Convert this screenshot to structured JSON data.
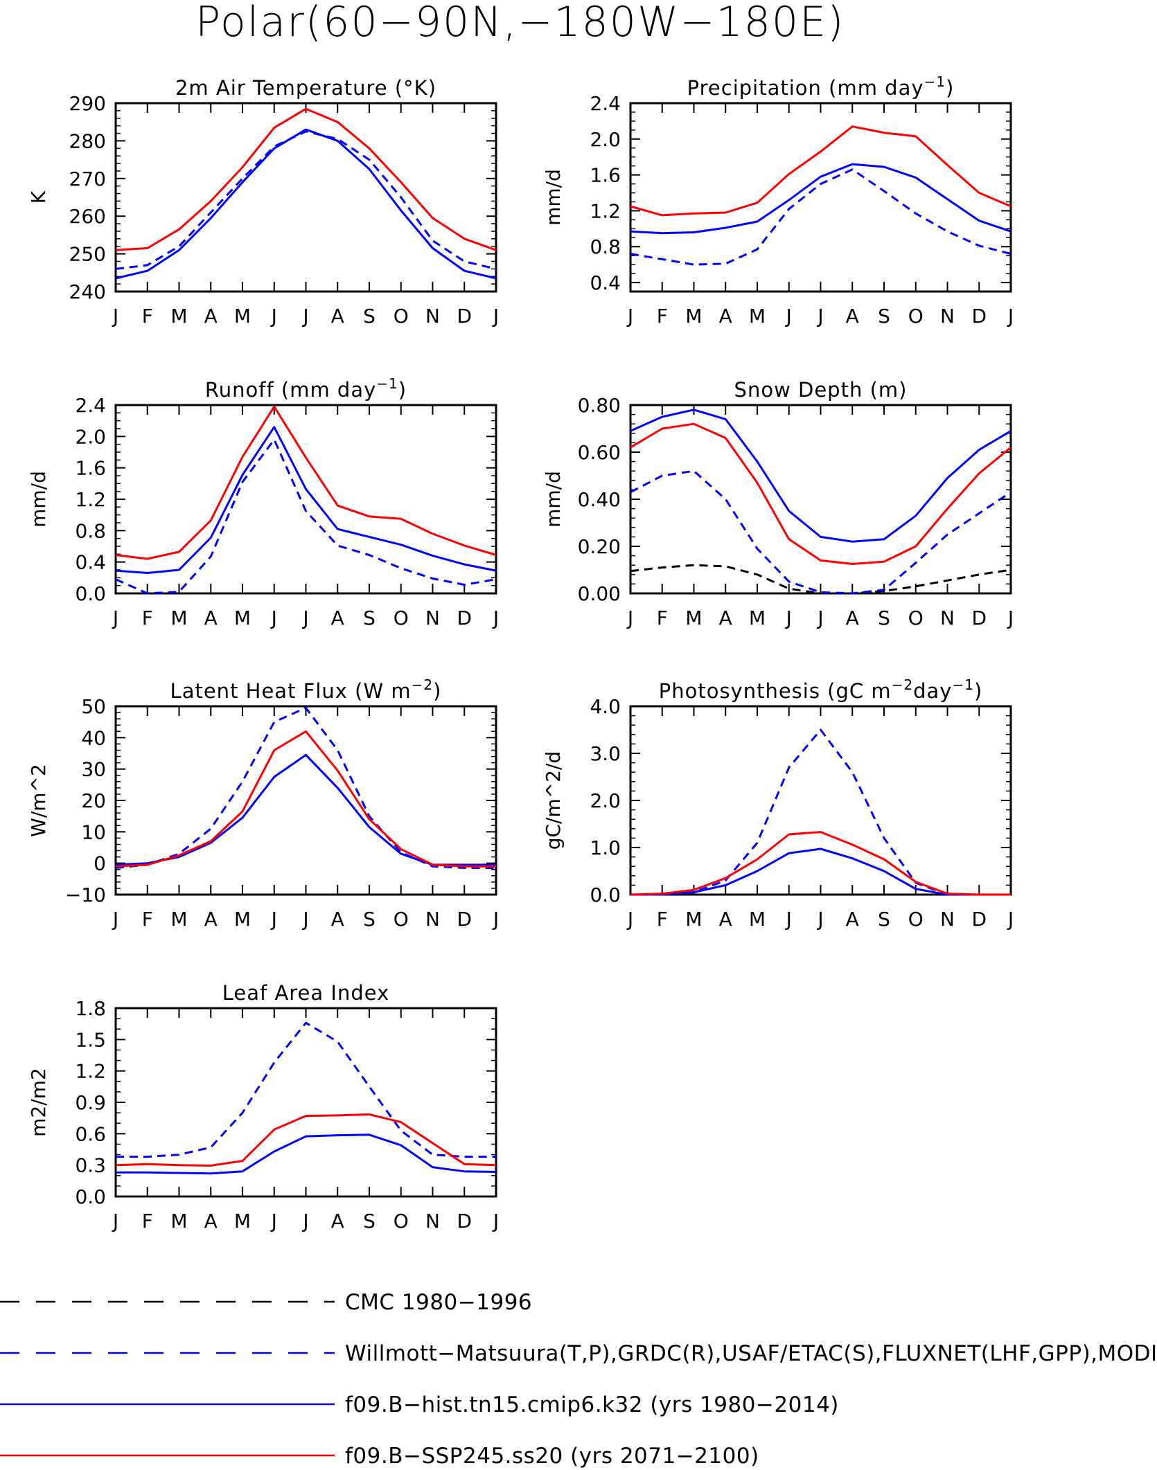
{
  "page": {
    "title": "Polar(60−90N,−180W−180E)"
  },
  "months": [
    "J",
    "F",
    "M",
    "A",
    "M",
    "J",
    "J",
    "A",
    "S",
    "O",
    "N",
    "D",
    "J"
  ],
  "legend": [
    {
      "label": "CMC 1980−1996",
      "color": "#000000",
      "dashed": true
    },
    {
      "label": "Willmott−Matsuura(T,P),GRDC(R),USAF/ETAC(S),FLUXNET(LHF,GPP),MODIS(LAI)",
      "color": "#0000ff",
      "dashed": true
    },
    {
      "label": "f09.B−hist.tn15.cmip6.k32 (yrs 1980−2014)",
      "color": "#0000ff",
      "dashed": false
    },
    {
      "label": "f09.B−SSP245.ss20 (yrs 2071−2100)",
      "color": "#ff0000",
      "dashed": false
    }
  ],
  "chart_data": [
    {
      "type": "line",
      "title": "2m Air Temperature (°K)",
      "ylabel": "K",
      "ylim": [
        240,
        290
      ],
      "yticks": [
        "240",
        "250",
        "260",
        "270",
        "280",
        "290"
      ],
      "minor_step": 2,
      "series": [
        {
          "style": "obs",
          "values": [
            246,
            247,
            252,
            261,
            270,
            278.5,
            282.5,
            280.5,
            275,
            265,
            253.5,
            248,
            246
          ]
        },
        {
          "style": "hist",
          "values": [
            243.5,
            245.5,
            251,
            259.5,
            269,
            278,
            283,
            280,
            272.5,
            261.5,
            251.5,
            245.5,
            243.5
          ]
        },
        {
          "style": "future",
          "values": [
            251,
            251.5,
            256.5,
            264,
            273,
            283.5,
            288.5,
            285,
            278,
            269,
            259.5,
            254,
            251
          ]
        }
      ]
    },
    {
      "type": "line",
      "title": "Precipitation (mm day⁻¹)",
      "ylabel": "mm/d",
      "ylim": [
        0.3,
        2.4
      ],
      "yticks": [
        "0.4",
        "0.8",
        "1.2",
        "1.6",
        "2.0",
        "2.4"
      ],
      "ytick_values": [
        0.4,
        0.8,
        1.2,
        1.6,
        2.0,
        2.4
      ],
      "minor_step": 0.1,
      "series": [
        {
          "style": "obs",
          "values": [
            0.72,
            0.66,
            0.6,
            0.61,
            0.77,
            1.22,
            1.5,
            1.66,
            1.42,
            1.17,
            0.97,
            0.81,
            0.72
          ]
        },
        {
          "style": "hist",
          "values": [
            0.97,
            0.95,
            0.96,
            1.01,
            1.08,
            1.32,
            1.58,
            1.72,
            1.69,
            1.57,
            1.33,
            1.09,
            0.97
          ]
        },
        {
          "style": "future",
          "values": [
            1.25,
            1.15,
            1.17,
            1.18,
            1.29,
            1.61,
            1.86,
            2.14,
            2.07,
            2.03,
            1.71,
            1.4,
            1.25
          ]
        }
      ]
    },
    {
      "type": "line",
      "title": "Runoff (mm day⁻¹)",
      "ylabel": "mm/d",
      "ylim": [
        0,
        2.4
      ],
      "yticks": [
        "0.0",
        "0.4",
        "0.8",
        "1.2",
        "1.6",
        "2.0",
        "2.4"
      ],
      "minor_step": 0.1,
      "series": [
        {
          "style": "obs",
          "values": [
            0.18,
            0.0,
            0.02,
            0.47,
            1.42,
            1.96,
            1.05,
            0.61,
            0.49,
            0.32,
            0.19,
            0.11,
            0.18
          ]
        },
        {
          "style": "hist",
          "values": [
            0.29,
            0.26,
            0.3,
            0.71,
            1.51,
            2.12,
            1.33,
            0.82,
            0.72,
            0.62,
            0.48,
            0.37,
            0.29
          ]
        },
        {
          "style": "future",
          "values": [
            0.49,
            0.44,
            0.53,
            0.93,
            1.74,
            2.38,
            1.73,
            1.12,
            0.98,
            0.95,
            0.76,
            0.61,
            0.49
          ]
        }
      ]
    },
    {
      "type": "line",
      "title": "Snow Depth (m)",
      "ylabel": "mm/d",
      "ylim": [
        0,
        0.8
      ],
      "yticks": [
        "0.00",
        "0.20",
        "0.40",
        "0.60",
        "0.80"
      ],
      "minor_step": 0.04,
      "series": [
        {
          "style": "cmc",
          "values": [
            0.095,
            0.11,
            0.12,
            0.115,
            0.08,
            0.02,
            0.0,
            0.0,
            0.01,
            0.03,
            0.055,
            0.08,
            0.1
          ]
        },
        {
          "style": "obs",
          "values": [
            0.43,
            0.5,
            0.52,
            0.4,
            0.19,
            0.05,
            0.005,
            0.0,
            0.015,
            0.13,
            0.25,
            0.34,
            0.43
          ]
        },
        {
          "style": "hist",
          "values": [
            0.69,
            0.75,
            0.78,
            0.74,
            0.56,
            0.35,
            0.24,
            0.22,
            0.23,
            0.33,
            0.49,
            0.61,
            0.69
          ]
        },
        {
          "style": "future",
          "values": [
            0.62,
            0.7,
            0.72,
            0.66,
            0.47,
            0.23,
            0.14,
            0.125,
            0.135,
            0.2,
            0.36,
            0.51,
            0.62
          ]
        }
      ]
    },
    {
      "type": "line",
      "title": "Latent Heat Flux (W m⁻²)",
      "ylabel": "W/m^2",
      "ylim": [
        -10,
        50
      ],
      "yticks": [
        "−10",
        "0",
        "10",
        "20",
        "30",
        "40",
        "50"
      ],
      "ytick_values": [
        -10,
        0,
        10,
        20,
        30,
        40,
        50
      ],
      "minor_step": 2,
      "series": [
        {
          "style": "obs",
          "values": [
            -1.5,
            -0.5,
            3,
            11,
            26,
            45,
            49.5,
            36,
            15,
            3.5,
            -1,
            -1.5,
            -1.5
          ]
        },
        {
          "style": "hist",
          "values": [
            -0.5,
            0,
            2,
            6.5,
            14.5,
            27.5,
            34.5,
            24,
            11.5,
            3,
            -0.5,
            -0.5,
            -0.5
          ]
        },
        {
          "style": "future",
          "values": [
            -1,
            -0.5,
            2.5,
            7,
            16.5,
            36,
            42,
            29.5,
            14,
            4.5,
            -0.5,
            -1,
            -1
          ]
        }
      ]
    },
    {
      "type": "line",
      "title": "Photosynthesis (gC m⁻²day⁻¹)",
      "ylabel": "gC/m^2/d",
      "ylim": [
        0,
        4
      ],
      "yticks": [
        "0.0",
        "1.0",
        "2.0",
        "3.0",
        "4.0"
      ],
      "minor_step": 0.2,
      "series": [
        {
          "style": "obs",
          "values": [
            0.0,
            0.0,
            0.05,
            0.3,
            1.1,
            2.7,
            3.5,
            2.6,
            1.2,
            0.25,
            0.0,
            0.0,
            0.0
          ]
        },
        {
          "style": "hist",
          "values": [
            0.0,
            0.0,
            0.05,
            0.2,
            0.5,
            0.88,
            0.97,
            0.77,
            0.5,
            0.12,
            0.0,
            0.0,
            0.0
          ]
        },
        {
          "style": "future",
          "values": [
            0.0,
            0.02,
            0.1,
            0.35,
            0.75,
            1.28,
            1.33,
            1.06,
            0.75,
            0.27,
            0.02,
            0.0,
            0.0
          ]
        }
      ]
    },
    {
      "type": "line",
      "title": "Leaf Area Index",
      "ylabel": "m2/m2",
      "ylim": [
        0,
        1.8
      ],
      "yticks": [
        "0.0",
        "0.3",
        "0.6",
        "0.9",
        "1.2",
        "1.5",
        "1.8"
      ],
      "minor_step": 0.1,
      "series": [
        {
          "style": "obs",
          "values": [
            0.38,
            0.38,
            0.4,
            0.47,
            0.8,
            1.28,
            1.66,
            1.48,
            1.05,
            0.63,
            0.4,
            0.38,
            0.38
          ]
        },
        {
          "style": "hist",
          "values": [
            0.23,
            0.23,
            0.225,
            0.22,
            0.24,
            0.43,
            0.575,
            0.585,
            0.59,
            0.49,
            0.28,
            0.24,
            0.235
          ]
        },
        {
          "style": "future",
          "values": [
            0.3,
            0.31,
            0.3,
            0.295,
            0.34,
            0.64,
            0.77,
            0.775,
            0.785,
            0.71,
            0.51,
            0.31,
            0.3
          ]
        }
      ]
    }
  ]
}
